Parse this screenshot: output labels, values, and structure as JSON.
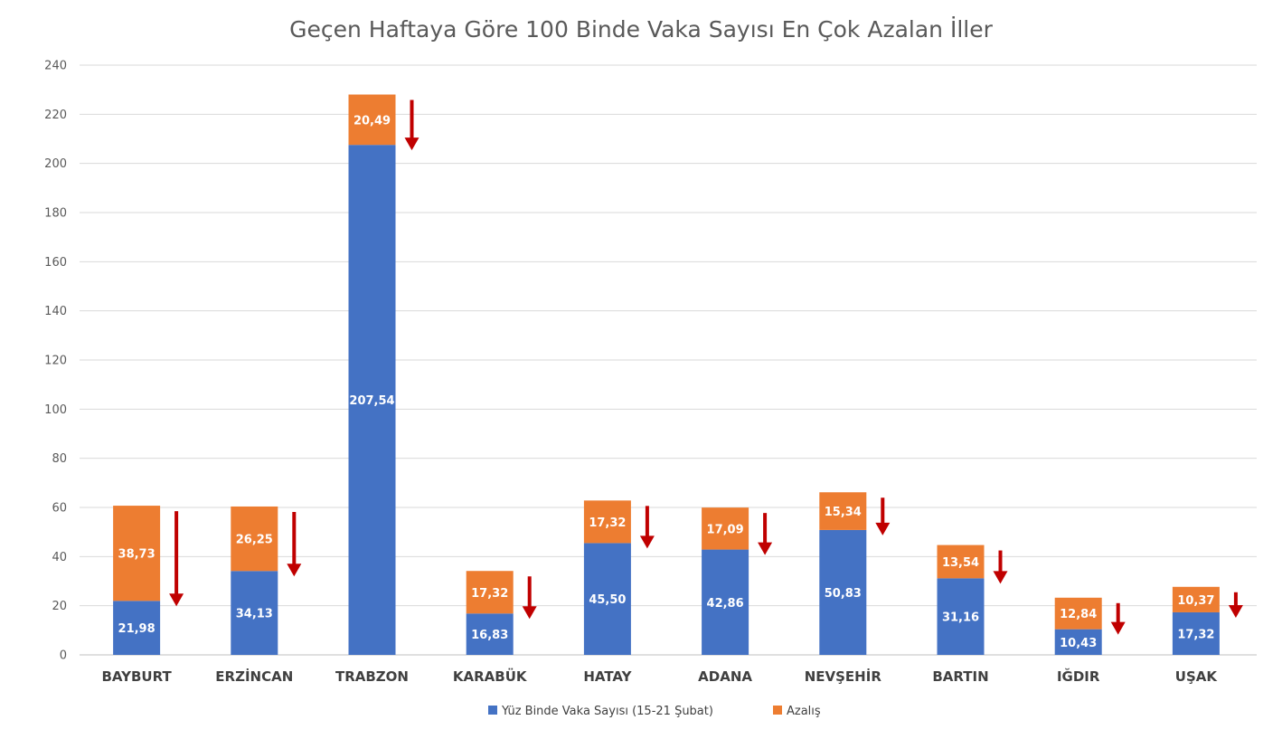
{
  "chart_data": {
    "type": "bar",
    "stacked": true,
    "title": "Geçen Haftaya Göre 100 Binde Vaka Sayısı En Çok Azalan İller",
    "categories": [
      "BAYBURT",
      "ERZİNCAN",
      "TRABZON",
      "KARABÜK",
      "HATAY",
      "ADANA",
      "NEVŞEHİR",
      "BARTIN",
      "IĞDIR",
      "UŞAK"
    ],
    "series": [
      {
        "name": "Yüz Binde Vaka Sayısı (15-21 Şubat)",
        "color": "#4472C4",
        "values": [
          21.98,
          34.13,
          207.54,
          16.83,
          45.5,
          42.86,
          50.83,
          31.16,
          10.43,
          17.32
        ],
        "labels": [
          "21,98",
          "34,13",
          "207,54",
          "16,83",
          "45,50",
          "42,86",
          "50,83",
          "31,16",
          "10,43",
          "17,32"
        ]
      },
      {
        "name": "Azalış",
        "color": "#ED7D31",
        "values": [
          38.73,
          26.25,
          20.49,
          17.32,
          17.32,
          17.09,
          15.34,
          13.54,
          12.84,
          10.37
        ],
        "labels": [
          "38,73",
          "26,25",
          "20,49",
          "17,32",
          "17,32",
          "17,09",
          "15,34",
          "13,54",
          "12,84",
          "10,37"
        ]
      }
    ],
    "ylim": [
      0,
      240
    ],
    "yticks": [
      0,
      20,
      40,
      60,
      80,
      100,
      120,
      140,
      160,
      180,
      200,
      220,
      240
    ],
    "grid": true,
    "legend": "bottom",
    "annotation_color": "#C00000",
    "annotation_icon": "down-arrow-icon"
  }
}
